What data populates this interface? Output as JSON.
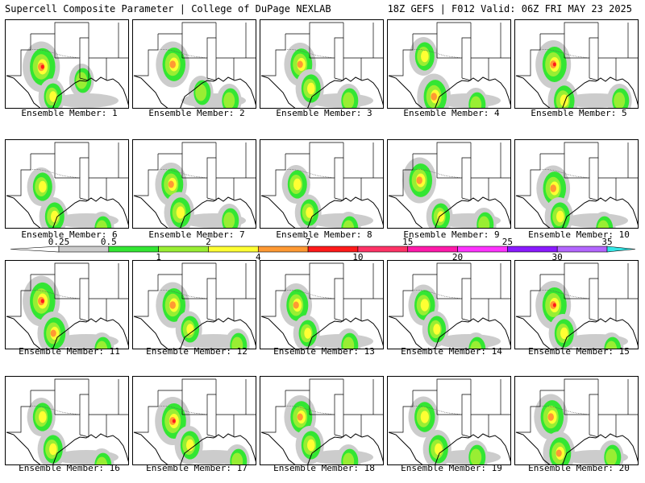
{
  "header": {
    "left": "Supercell Composite Parameter | College of DuPage NEXLAB",
    "right": "18Z GEFS | F012 Valid: 06Z FRI MAY 23 2025"
  },
  "colorbar": {
    "levels": [
      "0.25",
      "0.5",
      "1",
      "2",
      "4",
      "7",
      "10",
      "15",
      "20",
      "25",
      "30",
      "35"
    ],
    "colors": [
      "#cccccc",
      "#33e633",
      "#99ee33",
      "#ffff33",
      "#ff9933",
      "#ff1a1a",
      "#ff3366",
      "#ff1aaa",
      "#ff33ff",
      "#8a1aff",
      "#b366ff",
      "#33e6e6"
    ],
    "labels_below": [
      "1",
      "4",
      "10",
      "20",
      "30"
    ]
  },
  "panels": [
    {
      "label": "Ensemble Member: 1",
      "blobs": [
        [
          45,
          58,
          1.0
        ],
        [
          58,
          95,
          0.4
        ],
        [
          95,
          75,
          0.3
        ]
      ]
    },
    {
      "label": "Ensemble Member: 2",
      "blobs": [
        [
          50,
          55,
          0.8
        ],
        [
          85,
          90,
          0.3
        ],
        [
          120,
          100,
          0.3
        ]
      ]
    },
    {
      "label": "Ensemble Member: 3",
      "blobs": [
        [
          50,
          55,
          0.7
        ],
        [
          62,
          85,
          0.5
        ],
        [
          110,
          100,
          0.3
        ]
      ]
    },
    {
      "label": "Ensemble Member: 4",
      "blobs": [
        [
          45,
          45,
          0.5
        ],
        [
          58,
          95,
          0.8
        ],
        [
          110,
          105,
          0.3
        ]
      ]
    },
    {
      "label": "Ensemble Member: 5",
      "blobs": [
        [
          48,
          55,
          0.9
        ],
        [
          60,
          100,
          0.6
        ],
        [
          130,
          100,
          0.3
        ]
      ]
    },
    {
      "label": "Ensemble Member: 6",
      "blobs": [
        [
          45,
          58,
          0.5
        ],
        [
          60,
          95,
          0.5
        ],
        [
          120,
          110,
          0.3
        ]
      ]
    },
    {
      "label": "Ensemble Member: 7",
      "blobs": [
        [
          48,
          55,
          0.7
        ],
        [
          58,
          90,
          0.6
        ],
        [
          120,
          100,
          0.3
        ]
      ]
    },
    {
      "label": "Ensemble Member: 8",
      "blobs": [
        [
          45,
          55,
          0.5
        ],
        [
          60,
          90,
          0.4
        ],
        [
          110,
          110,
          0.3
        ]
      ]
    },
    {
      "label": "Ensemble Member: 9",
      "blobs": [
        [
          40,
          50,
          0.8
        ],
        [
          65,
          95,
          0.4
        ],
        [
          120,
          105,
          0.3
        ]
      ]
    },
    {
      "label": "Ensemble Member: 10",
      "blobs": [
        [
          48,
          60,
          0.8
        ],
        [
          55,
          95,
          0.5
        ],
        [
          110,
          110,
          0.3
        ]
      ]
    },
    {
      "label": "Ensemble Member: 11",
      "blobs": [
        [
          45,
          50,
          1.0
        ],
        [
          60,
          90,
          0.7
        ],
        [
          120,
          110,
          0.3
        ]
      ]
    },
    {
      "label": "Ensemble Member: 12",
      "blobs": [
        [
          50,
          55,
          0.8
        ],
        [
          70,
          85,
          0.4
        ],
        [
          130,
          105,
          0.3
        ]
      ]
    },
    {
      "label": "Ensemble Member: 13",
      "blobs": [
        [
          45,
          55,
          0.7
        ],
        [
          58,
          90,
          0.4
        ],
        [
          110,
          105,
          0.3
        ]
      ]
    },
    {
      "label": "Ensemble Member: 14",
      "blobs": [
        [
          45,
          55,
          0.6
        ],
        [
          60,
          85,
          0.4
        ],
        [
          110,
          110,
          0.3
        ]
      ]
    },
    {
      "label": "Ensemble Member: 15",
      "blobs": [
        [
          48,
          55,
          0.9
        ],
        [
          60,
          90,
          0.5
        ],
        [
          120,
          110,
          0.3
        ]
      ]
    },
    {
      "label": "Ensemble Member: 16",
      "blobs": [
        [
          45,
          50,
          0.5
        ],
        [
          58,
          90,
          0.5
        ],
        [
          120,
          110,
          0.3
        ]
      ]
    },
    {
      "label": "Ensemble Member: 17",
      "blobs": [
        [
          50,
          55,
          0.9
        ],
        [
          70,
          85,
          0.5
        ],
        [
          130,
          105,
          0.3
        ]
      ]
    },
    {
      "label": "Ensemble Member: 18",
      "blobs": [
        [
          50,
          50,
          0.7
        ],
        [
          62,
          85,
          0.5
        ],
        [
          110,
          105,
          0.3
        ]
      ]
    },
    {
      "label": "Ensemble Member: 19",
      "blobs": [
        [
          45,
          50,
          0.6
        ],
        [
          62,
          90,
          0.5
        ],
        [
          110,
          100,
          0.3
        ]
      ]
    },
    {
      "label": "Ensemble Member: 20",
      "blobs": [
        [
          45,
          50,
          0.8
        ],
        [
          55,
          95,
          0.7
        ],
        [
          120,
          100,
          0.3
        ]
      ]
    }
  ]
}
